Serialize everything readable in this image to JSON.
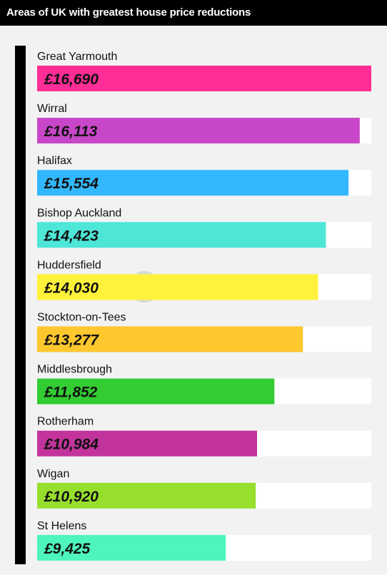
{
  "title": "Areas of UK with greatest house price reductions",
  "chart_data": {
    "type": "bar",
    "orientation": "horizontal",
    "categories": [
      "Great Yarmouth",
      "Wirral",
      "Halifax",
      "Bishop Auckland",
      "Huddersfield",
      "Stockton-on-Tees",
      "Middlesbrough",
      "Rotherham",
      "Wigan",
      "St Helens"
    ],
    "values": [
      16690,
      16113,
      15554,
      14423,
      14030,
      13277,
      11852,
      10984,
      10920,
      9425
    ],
    "value_labels": [
      "£16,690",
      "£16,113",
      "£15,554",
      "£14,423",
      "£14,030",
      "£13,277",
      "£11,852",
      "£10,984",
      "£10,920",
      "£9,425"
    ],
    "colors": [
      "#ff2d96",
      "#c846c8",
      "#33b8ff",
      "#4de6d7",
      "#fff23a",
      "#ffc72e",
      "#33cc33",
      "#c2349c",
      "#97df2d",
      "#4ef5bd"
    ],
    "track_color": "#ffffff",
    "xlim": [
      0,
      16690
    ],
    "grid": false,
    "legend": "none"
  }
}
